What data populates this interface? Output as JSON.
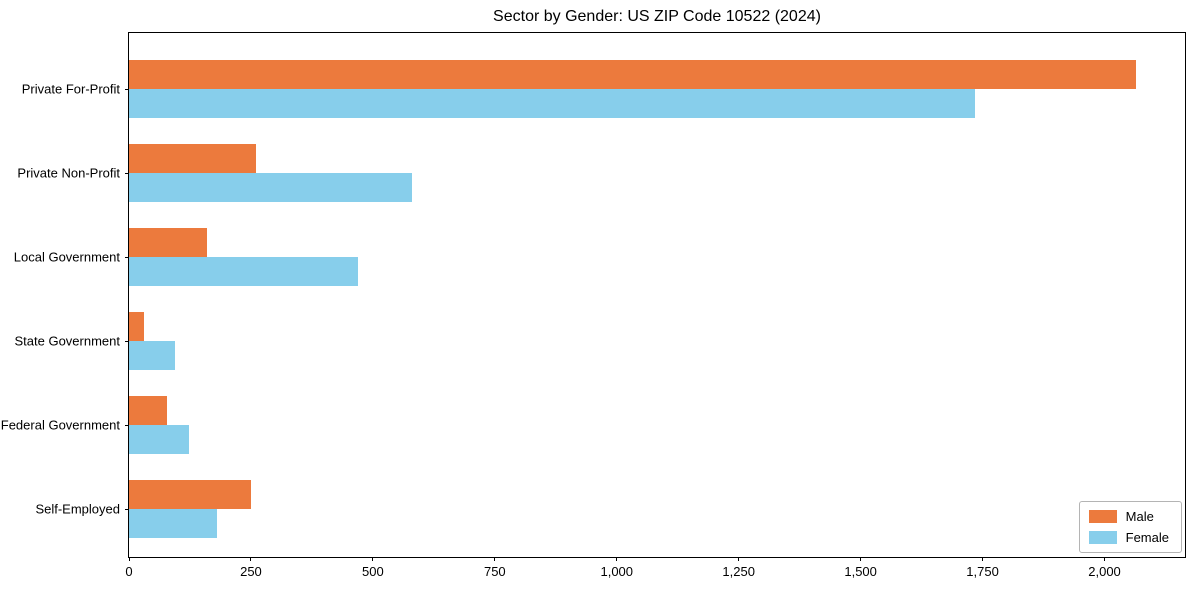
{
  "chart_data": {
    "type": "bar",
    "orientation": "horizontal",
    "title": "Sector by Gender: US ZIP Code 10522 (2024)",
    "categories": [
      "Private For-Profit",
      "Private Non-Profit",
      "Local Government",
      "State Government",
      "Federal Government",
      "Self-Employed"
    ],
    "series": [
      {
        "name": "Male",
        "color": "#EC7A3D",
        "values": [
          2065,
          260,
          160,
          30,
          78,
          250
        ]
      },
      {
        "name": "Female",
        "color": "#87CEEB",
        "values": [
          1735,
          580,
          470,
          95,
          123,
          180
        ]
      }
    ],
    "xlabel": "",
    "ylabel": "",
    "xlim": [
      0,
      2165
    ],
    "xticks": [
      0,
      250,
      500,
      750,
      1000,
      1250,
      1500,
      1750,
      2000
    ],
    "xtick_labels": [
      "0",
      "250",
      "500",
      "750",
      "1,000",
      "1,250",
      "1,500",
      "1,750",
      "2,000"
    ],
    "legend_position": "lower right",
    "grid": false
  }
}
